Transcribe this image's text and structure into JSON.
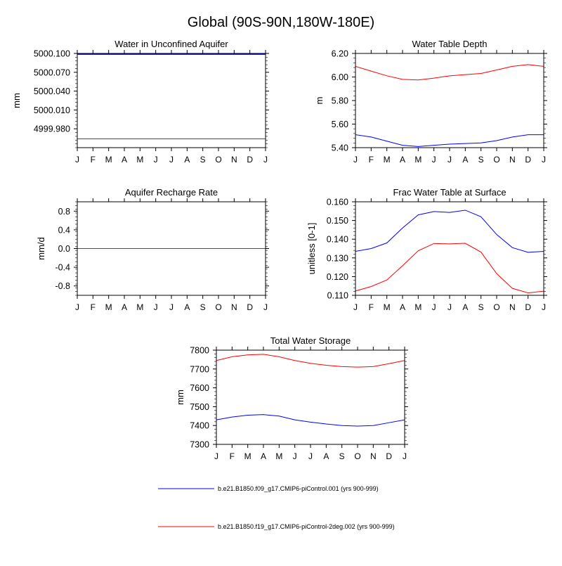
{
  "figure_title": "Global (90S-90N,180W-180E)",
  "legend": [
    {
      "label": "b.e21.B1850.f09_g17.CMIP6-piControl.001 (yrs 900-999)",
      "color": "#0000ff"
    },
    {
      "label": "b.e21.B1850.f19_g17.CMIP6-piControl-2deg.002 (yrs 900-999)",
      "color": "#ff0000"
    }
  ],
  "chart_data": [
    {
      "type": "line",
      "title": "Water in Unconfined Aquifer",
      "ylabel": "mm",
      "categories": [
        "J",
        "F",
        "M",
        "A",
        "M",
        "J",
        "J",
        "A",
        "S",
        "O",
        "N",
        "D",
        "J"
      ],
      "ylim": [
        4999.95,
        5000.1
      ],
      "yticks": [
        "5000.100",
        "5000.070",
        "5000.040",
        "5000.010",
        "4999.980"
      ],
      "series": [
        {
          "name": "b.e21.B1850.f09_g17.CMIP6-piControl.001",
          "color": "#0000ff",
          "values": [
            5000.099,
            5000.099,
            5000.099,
            5000.099,
            5000.099,
            5000.099,
            5000.099,
            5000.099,
            5000.099,
            5000.099,
            5000.099,
            5000.099,
            5000.099
          ]
        },
        {
          "name": "b.e21.B1850.f19_g17.CMIP6-piControl-2deg.002",
          "color": "#ff0000",
          "values": [
            4999.964,
            4999.964,
            4999.964,
            4999.964,
            4999.964,
            4999.964,
            4999.964,
            4999.964,
            4999.964,
            4999.964,
            4999.964,
            4999.964,
            4999.964
          ]
        }
      ]
    },
    {
      "type": "line",
      "title": "Water Table Depth",
      "ylabel": "m",
      "categories": [
        "J",
        "F",
        "M",
        "A",
        "M",
        "J",
        "J",
        "A",
        "S",
        "O",
        "N",
        "D",
        "J"
      ],
      "ylim": [
        5.4,
        6.2
      ],
      "yticks": [
        "6.20",
        "6.00",
        "5.80",
        "5.60",
        "5.40"
      ],
      "series": [
        {
          "name": "b.e21.B1850.f09_g17.CMIP6-piControl.001",
          "color": "#0000ff",
          "values": [
            5.51,
            5.49,
            5.455,
            5.42,
            5.41,
            5.42,
            5.43,
            5.435,
            5.44,
            5.46,
            5.49,
            5.51,
            5.51
          ]
        },
        {
          "name": "b.e21.B1850.f19_g17.CMIP6-piControl-2deg.002",
          "color": "#ff0000",
          "values": [
            6.09,
            6.05,
            6.01,
            5.98,
            5.975,
            5.99,
            6.01,
            6.02,
            6.03,
            6.06,
            6.09,
            6.105,
            6.09
          ]
        }
      ]
    },
    {
      "type": "line",
      "title": "Aquifer Recharge Rate",
      "ylabel": "mm/d",
      "categories": [
        "J",
        "F",
        "M",
        "A",
        "M",
        "J",
        "J",
        "A",
        "S",
        "O",
        "N",
        "D",
        "J"
      ],
      "ylim": [
        -1.0,
        1.0
      ],
      "yticks": [
        "0.8",
        "0.4",
        "0.0",
        "-0.4",
        "-0.8"
      ],
      "series": [
        {
          "name": "b.e21.B1850.f09_g17.CMIP6-piControl.001",
          "color": "#0000ff",
          "values": [
            0,
            0,
            0,
            0,
            0,
            0,
            0,
            0,
            0,
            0,
            0,
            0,
            0
          ]
        },
        {
          "name": "b.e21.B1850.f19_g17.CMIP6-piControl-2deg.002",
          "color": "#ff0000",
          "values": [
            0,
            0,
            0,
            0,
            0,
            0,
            0,
            0,
            0,
            0,
            0,
            0,
            0
          ]
        }
      ]
    },
    {
      "type": "line",
      "title": "Frac Water Table at Surface",
      "ylabel": "unitless [0-1]",
      "categories": [
        "J",
        "F",
        "M",
        "A",
        "M",
        "J",
        "J",
        "A",
        "S",
        "O",
        "N",
        "D",
        "J"
      ],
      "ylim": [
        0.11,
        0.16
      ],
      "yticks": [
        "0.160",
        "0.150",
        "0.140",
        "0.130",
        "0.120",
        "0.110"
      ],
      "series": [
        {
          "name": "b.e21.B1850.f09_g17.CMIP6-piControl.001",
          "color": "#0000ff",
          "values": [
            0.1335,
            0.135,
            0.138,
            0.146,
            0.153,
            0.1548,
            0.1543,
            0.1555,
            0.152,
            0.1425,
            0.1355,
            0.133,
            0.1335
          ]
        },
        {
          "name": "b.e21.B1850.f19_g17.CMIP6-piControl-2deg.002",
          "color": "#ff0000",
          "values": [
            0.1123,
            0.1147,
            0.1182,
            0.1258,
            0.1338,
            0.1377,
            0.1375,
            0.1378,
            0.1331,
            0.1216,
            0.1137,
            0.1113,
            0.1122
          ]
        }
      ]
    },
    {
      "type": "line",
      "title": "Total Water Storage",
      "ylabel": "mm",
      "categories": [
        "J",
        "F",
        "M",
        "A",
        "M",
        "J",
        "J",
        "A",
        "S",
        "O",
        "N",
        "D",
        "J"
      ],
      "ylim": [
        7300,
        7800
      ],
      "yticks": [
        "7800",
        "7700",
        "7600",
        "7500",
        "7400",
        "7300"
      ],
      "series": [
        {
          "name": "b.e21.B1850.f09_g17.CMIP6-piControl.001",
          "color": "#0000ff",
          "values": [
            7430,
            7445,
            7455,
            7458,
            7450,
            7430,
            7418,
            7408,
            7400,
            7397,
            7400,
            7415,
            7430
          ]
        },
        {
          "name": "b.e21.B1850.f19_g17.CMIP6-piControl-2deg.002",
          "color": "#ff0000",
          "values": [
            7745,
            7765,
            7775,
            7778,
            7765,
            7745,
            7730,
            7720,
            7713,
            7710,
            7713,
            7728,
            7745
          ]
        }
      ]
    }
  ]
}
